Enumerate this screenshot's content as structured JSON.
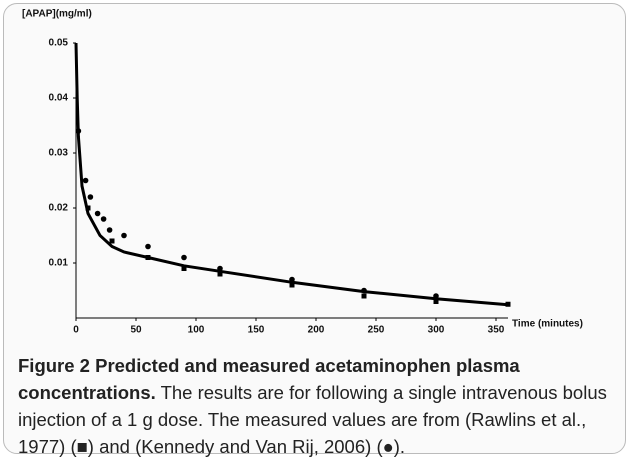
{
  "chart_data": {
    "type": "scatter",
    "y_label": "[APAP](mg/ml)",
    "x_label": "Time (minutes)",
    "xlim": [
      0,
      360
    ],
    "xticks": [
      0,
      50,
      100,
      150,
      200,
      250,
      300,
      350
    ],
    "ylim": [
      0,
      0.05
    ],
    "yticks": [
      0.01,
      0.02,
      0.03,
      0.04,
      0.05
    ],
    "series": [
      {
        "marker": "square",
        "color": "#000000",
        "x": [
          10,
          30,
          60,
          90,
          120,
          180,
          240,
          300,
          360
        ],
        "values": [
          0.02,
          0.014,
          0.011,
          0.009,
          0.008,
          0.006,
          0.004,
          0.003,
          0.0025
        ]
      },
      {
        "marker": "circle",
        "color": "#000000",
        "x": [
          2,
          8,
          12,
          18,
          23,
          28,
          40,
          60,
          90,
          120,
          180,
          240,
          300
        ],
        "values": [
          0.034,
          0.025,
          0.022,
          0.019,
          0.018,
          0.016,
          0.015,
          0.013,
          0.011,
          0.009,
          0.007,
          0.005,
          0.004
        ]
      }
    ],
    "line": {
      "color": "#000000",
      "x": [
        0,
        1,
        2,
        5,
        10,
        20,
        30,
        40,
        60,
        90,
        120,
        180,
        240,
        300,
        360
      ],
      "values": [
        0.05,
        0.04,
        0.033,
        0.024,
        0.019,
        0.015,
        0.013,
        0.012,
        0.011,
        0.0095,
        0.0085,
        0.0065,
        0.0048,
        0.0035,
        0.0024
      ]
    }
  },
  "caption": {
    "label": "Figure 2",
    "title": "Predicted and measured acetaminophen plasma concentrations.",
    "text": "The results are for following a single intravenous bolus injection of a 1 g dose. The measured values are from (Rawlins et al., 1977) (■) and (Kennedy and Van Rij, 2006) (●)."
  }
}
